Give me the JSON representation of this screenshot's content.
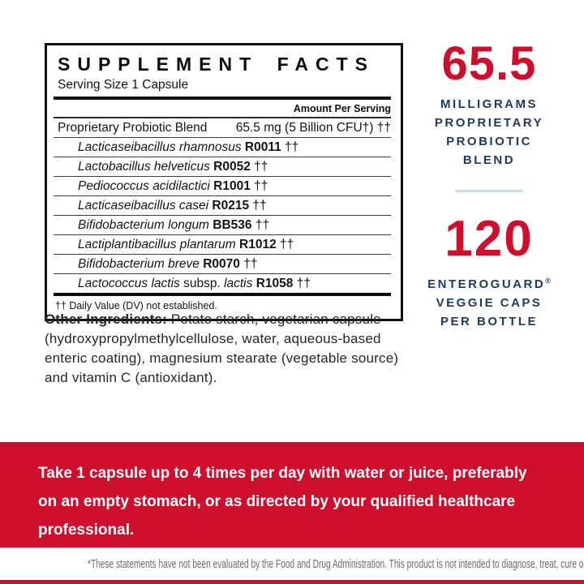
{
  "panel": {
    "title": "SUPPLEMENT FACTS",
    "serving": "Serving Size 1 Capsule",
    "amount_header": "Amount Per Serving",
    "blend_name": "Proprietary Probiotic Blend",
    "blend_amount": "65.5 mg (5 Billion CFU†) ††",
    "strains": [
      {
        "italic": "Lacticaseibacillus rhamnosus",
        "code": "R0011",
        "dagger": "††"
      },
      {
        "italic": "Lactobacillus helveticus",
        "code": "R0052",
        "dagger": "††"
      },
      {
        "italic": "Pediococcus acidilactici",
        "code": "R1001",
        "dagger": "††"
      },
      {
        "italic": "Lacticaseibacillus casei",
        "code": "R0215",
        "dagger": "††"
      },
      {
        "italic": "Bifidobacterium longum",
        "code": "BB536",
        "dagger": "††"
      },
      {
        "italic": "Lactiplantibacillus plantarum",
        "code": "R1012",
        "dagger": "††"
      },
      {
        "italic": "Bifidobacterium breve",
        "code": "R0070",
        "dagger": "††"
      },
      {
        "italic": "Lactococcus lactis",
        "roman": "subsp.",
        "italic2": "lactis",
        "code": "R1058",
        "dagger": "††"
      }
    ],
    "footnote": "†† Daily Value (DV) not established."
  },
  "highlights": {
    "amount_value": "65.5",
    "amount_lines": [
      "MILLIGRAMS",
      "PROPRIETARY",
      "PROBIOTIC",
      "BLEND"
    ],
    "count_value": "120",
    "count_brand": "ENTEROGUARD",
    "count_reg": "®",
    "count_lines": [
      "VEGGIE CAPS",
      "PER BOTTLE"
    ]
  },
  "other_ingredients": {
    "label": "Other Ingredients:",
    "text": " Potato starch, vegetarian capsule (hydroxypropylmethylcellulose, water, aqueous-based enteric coating), magnesium stearate (vegetable source) and vitamin C (antioxidant)."
  },
  "directions": {
    "lines": [
      "Take 1 capsule up to 4 times per day with water or juice, preferably",
      "on an empty stomach, or as directed by your qualified healthcare",
      "professional."
    ]
  },
  "disclaimer": {
    "text": "*These statements have not been evaluated by the Food and Drug Administration. This product is not intended to diagnose, treat, cure or prevent any disease."
  },
  "colors": {
    "red": "#ce0e2d",
    "navy": "#1c3a5e",
    "divider_blue": "#c9dfea",
    "disclaimer_gray": "#6b6b6b"
  }
}
